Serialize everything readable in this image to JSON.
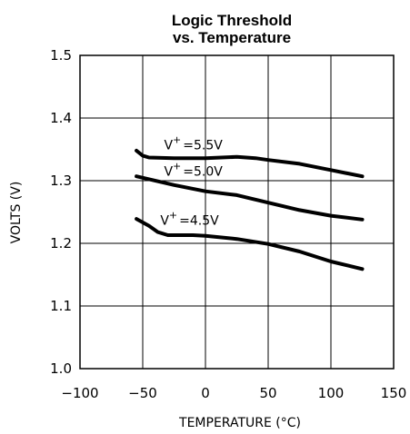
{
  "chart_data": {
    "type": "line",
    "title_line1": "Logic Threshold",
    "title_line2": "vs. Temperature",
    "xlabel": "TEMPERATURE (°C)",
    "ylabel": "VOLTS (V)",
    "xlim": [
      -100,
      150
    ],
    "ylim": [
      1.0,
      1.5
    ],
    "xticks": [
      -100,
      -50,
      0,
      50,
      100,
      150
    ],
    "xtick_labels": [
      "−100",
      "−50",
      "0",
      "50",
      "100",
      "150"
    ],
    "yticks": [
      1.0,
      1.1,
      1.2,
      1.3,
      1.4,
      1.5
    ],
    "ytick_labels": [
      "1.0",
      "1.1",
      "1.2",
      "1.3",
      "1.4",
      "1.5"
    ],
    "grid": true,
    "series": [
      {
        "name": "V+ = 5.5V",
        "label_base": "V",
        "label_sup": "+",
        "label_rest": "=5.5V",
        "x": [
          -55,
          -50,
          -45,
          -25,
          0,
          25,
          40,
          50,
          75,
          100,
          125
        ],
        "y": [
          1.348,
          1.34,
          1.337,
          1.336,
          1.336,
          1.338,
          1.336,
          1.333,
          1.327,
          1.317,
          1.307
        ],
        "label_at": [
          -33,
          1.35
        ]
      },
      {
        "name": "V+ = 5.0V",
        "label_base": "V",
        "label_sup": "+",
        "label_rest": "=5.0V",
        "x": [
          -55,
          -25,
          0,
          25,
          50,
          75,
          100,
          125
        ],
        "y": [
          1.307,
          1.293,
          1.283,
          1.277,
          1.265,
          1.253,
          1.244,
          1.238
        ],
        "label_at": [
          -33,
          1.308
        ]
      },
      {
        "name": "V+ = 4.5V",
        "label_base": "V",
        "label_sup": "+",
        "label_rest": "=4.5V",
        "x": [
          -55,
          -45,
          -38,
          -30,
          -10,
          0,
          25,
          50,
          75,
          100,
          125
        ],
        "y": [
          1.239,
          1.228,
          1.218,
          1.213,
          1.213,
          1.212,
          1.207,
          1.199,
          1.187,
          1.171,
          1.159
        ],
        "label_at": [
          -36,
          1.23
        ]
      }
    ]
  }
}
